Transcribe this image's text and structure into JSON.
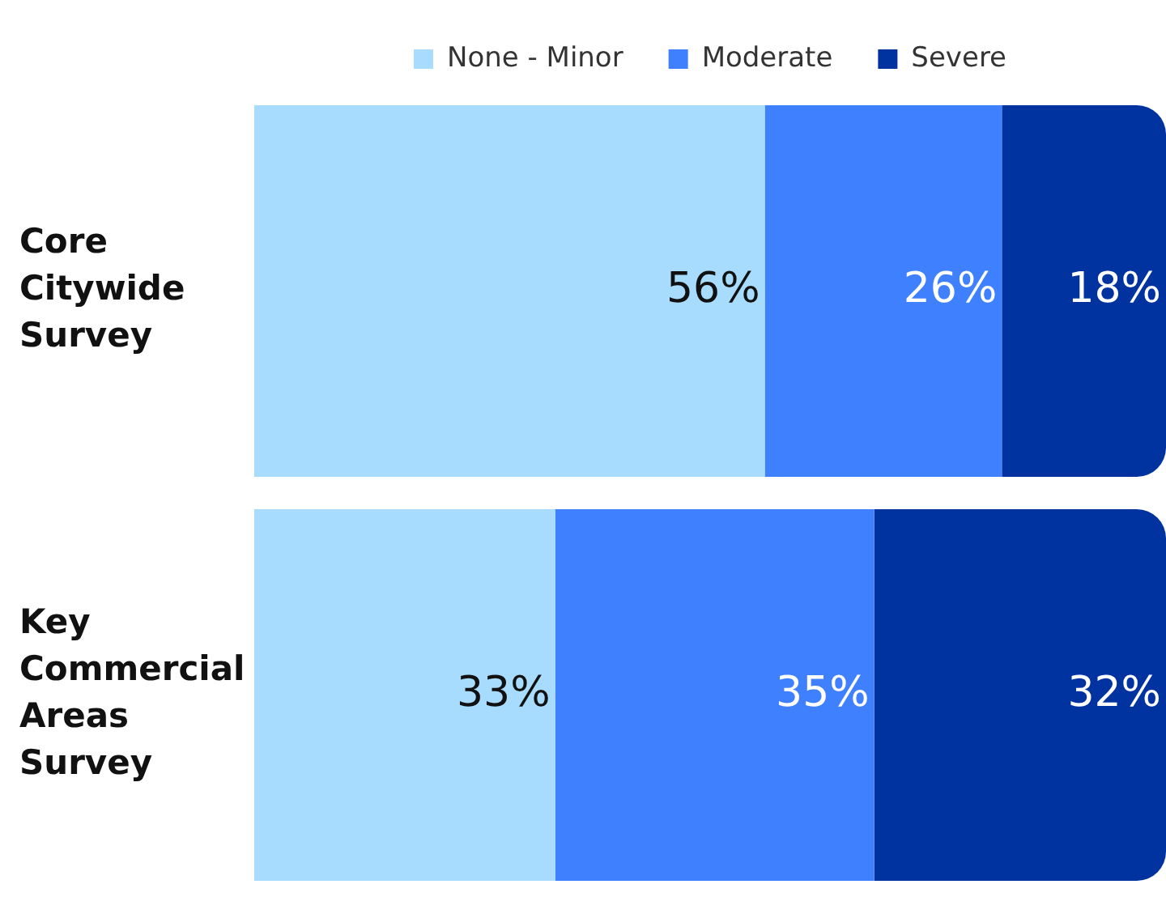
{
  "chart_data": {
    "type": "bar",
    "orientation": "horizontal",
    "stacked": true,
    "categories": [
      "Core Citywide Survey",
      "Key Commercial Areas Survey"
    ],
    "series": [
      {
        "name": "None - Minor",
        "color": "#a8dcff",
        "values": [
          56,
          33
        ],
        "value_labels": [
          "56%",
          "33%"
        ]
      },
      {
        "name": "Moderate",
        "color": "#3f80ff",
        "values": [
          26,
          35
        ],
        "value_labels": [
          "26%",
          "35%"
        ]
      },
      {
        "name": "Severe",
        "color": "#0033a0",
        "values": [
          18,
          32
        ],
        "value_labels": [
          "18%",
          "32%"
        ]
      }
    ],
    "xlim": [
      0,
      100
    ],
    "tick_labels": "y",
    "legend": "top"
  }
}
